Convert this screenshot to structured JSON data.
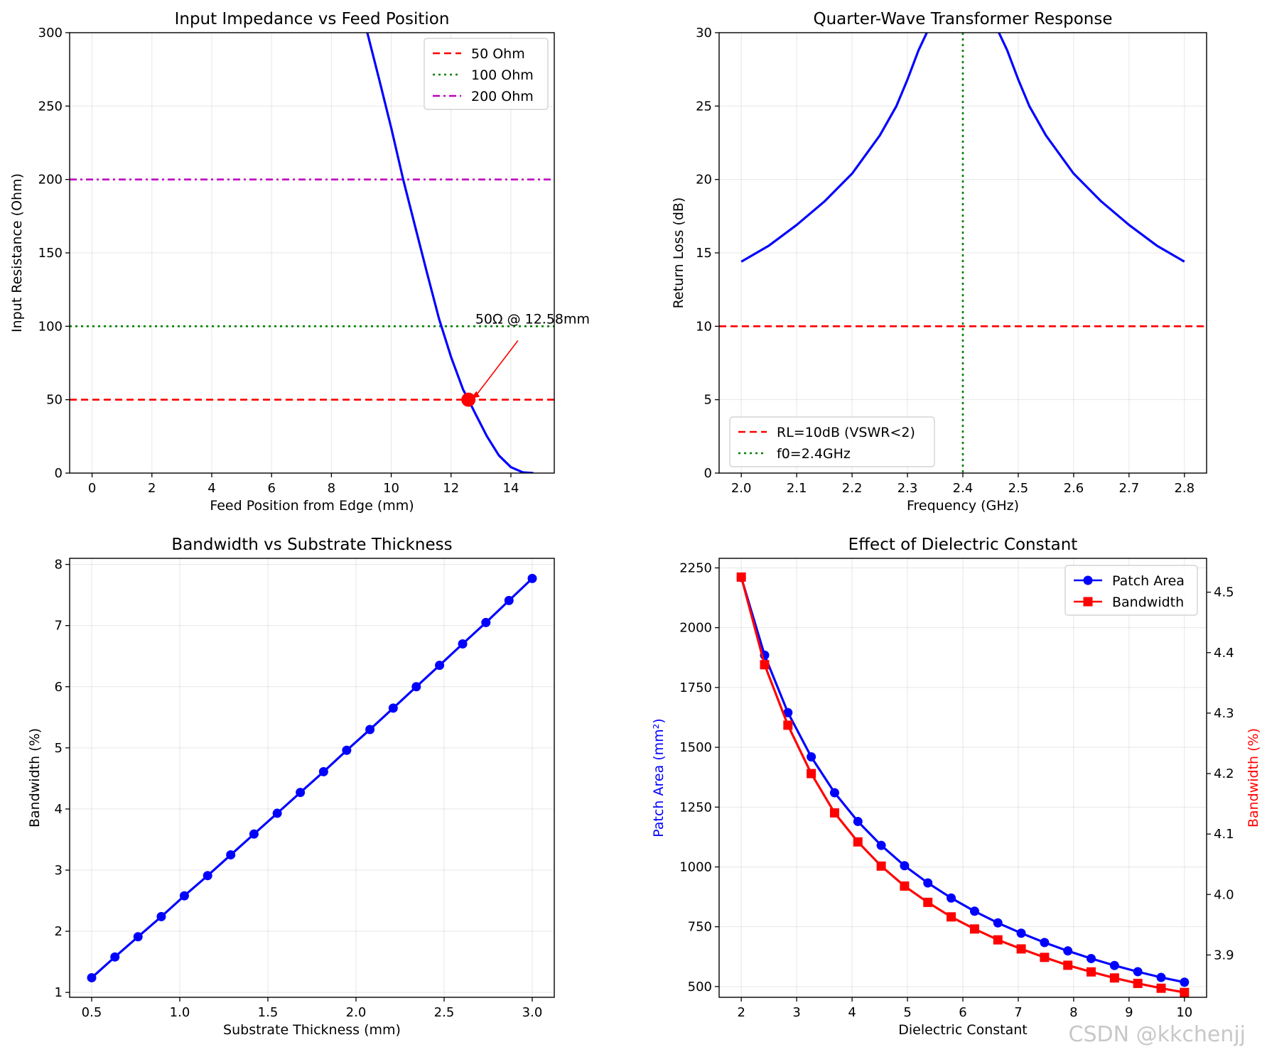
{
  "watermark": "CSDN @kkchenjj",
  "chart_data": [
    {
      "type": "line",
      "title": "Input Impedance vs Feed Position",
      "xlabel": "Feed Position from Edge (mm)",
      "ylabel": "Input Resistance (Ohm)",
      "xlim": [
        -0.75,
        15.45
      ],
      "ylim": [
        0,
        300
      ],
      "xticks": [
        0,
        2,
        4,
        6,
        8,
        10,
        12,
        14
      ],
      "yticks": [
        0,
        50,
        100,
        150,
        200,
        250,
        300
      ],
      "grid": true,
      "legend_position": "upper-right",
      "series": [
        {
          "name": "Input Resistance",
          "color": "#0000ff",
          "style": "solid",
          "x": [
            9.2,
            9.6,
            10.0,
            10.4,
            10.8,
            11.2,
            11.6,
            12.0,
            12.4,
            12.58,
            12.8,
            13.2,
            13.6,
            14.0,
            14.4,
            14.75
          ],
          "y": [
            300,
            268,
            235,
            200,
            168,
            136,
            105,
            79,
            57,
            50,
            41,
            25,
            12,
            4,
            0.5,
            0
          ]
        }
      ],
      "hlines": [
        {
          "label": "50 Ohm",
          "y": 50,
          "color": "#ff0000",
          "style": "dashed"
        },
        {
          "label": "100 Ohm",
          "y": 100,
          "color": "#008000",
          "style": "dotted"
        },
        {
          "label": "200 Ohm",
          "y": 200,
          "color": "#bf00bf",
          "style": "dashdot"
        }
      ],
      "marker": {
        "x": 12.58,
        "y": 50,
        "color": "#ff0000"
      },
      "annotation": {
        "text": "50Ω @ 12.58mm",
        "x": 12.58,
        "y": 50,
        "text_x": 14.9,
        "text_y": 97
      }
    },
    {
      "type": "line",
      "title": "Quarter-Wave Transformer Response",
      "xlabel": "Frequency (GHz)",
      "ylabel": "Return Loss (dB)",
      "xlim": [
        1.96,
        2.84
      ],
      "ylim": [
        0,
        30
      ],
      "xticks": [
        2.0,
        2.1,
        2.2,
        2.3,
        2.4,
        2.5,
        2.6,
        2.7,
        2.8
      ],
      "xtick_labels": [
        "2.0",
        "2.1",
        "2.2",
        "2.3",
        "2.4",
        "2.5",
        "2.6",
        "2.7",
        "2.8"
      ],
      "yticks": [
        0,
        5,
        10,
        15,
        20,
        25,
        30
      ],
      "grid": true,
      "legend_position": "lower-left",
      "series": [
        {
          "name": "Return Loss",
          "color": "#0000ff",
          "style": "solid",
          "segments": [
            {
              "x": [
                2.0,
                2.05,
                2.1,
                2.15,
                2.2,
                2.25,
                2.28,
                2.3,
                2.32,
                2.335
              ],
              "y": [
                14.4,
                15.5,
                16.9,
                18.5,
                20.4,
                23.0,
                25.0,
                26.8,
                28.8,
                30
              ]
            },
            {
              "x": [
                2.465,
                2.48,
                2.5,
                2.52,
                2.55,
                2.6,
                2.65,
                2.7,
                2.75,
                2.8
              ],
              "y": [
                30,
                28.8,
                26.8,
                25.0,
                23.0,
                20.4,
                18.5,
                16.9,
                15.5,
                14.4
              ]
            }
          ]
        }
      ],
      "hlines": [
        {
          "label": "RL=10dB (VSWR<2)",
          "y": 10,
          "color": "#ff0000",
          "style": "dashed"
        }
      ],
      "vlines": [
        {
          "label": "f0=2.4GHz",
          "x": 2.4,
          "color": "#008000",
          "style": "dotted"
        }
      ]
    },
    {
      "type": "line",
      "title": "Bandwidth vs Substrate Thickness",
      "xlabel": "Substrate Thickness (mm)",
      "ylabel": "Bandwidth (%)",
      "xlim": [
        0.375,
        3.125
      ],
      "ylim": [
        0.92,
        8.1
      ],
      "xticks": [
        0.5,
        1.0,
        1.5,
        2.0,
        2.5,
        3.0
      ],
      "xtick_labels": [
        "0.5",
        "1.0",
        "1.5",
        "2.0",
        "2.5",
        "3.0"
      ],
      "yticks": [
        1,
        2,
        3,
        4,
        5,
        6,
        7,
        8
      ],
      "grid": true,
      "series": [
        {
          "name": "Bandwidth",
          "color": "#0000ff",
          "marker": "circle",
          "x": [
            0.5,
            0.632,
            0.763,
            0.895,
            1.026,
            1.158,
            1.289,
            1.421,
            1.553,
            1.684,
            1.816,
            1.947,
            2.079,
            2.211,
            2.342,
            2.474,
            2.605,
            2.737,
            2.868,
            3.0
          ],
          "y": [
            1.24,
            1.58,
            1.91,
            2.24,
            2.58,
            2.91,
            3.25,
            3.59,
            3.93,
            4.27,
            4.61,
            4.96,
            5.3,
            5.65,
            6.0,
            6.35,
            6.7,
            7.05,
            7.41,
            7.77
          ]
        }
      ]
    },
    {
      "type": "line",
      "title": "Effect of Dielectric Constant",
      "xlabel": "Dielectric Constant",
      "ylabel": "Patch Area (mm²)",
      "ylabel_color": "#0000ff",
      "ylabel_right": "Bandwidth (%)",
      "ylabel_right_color": "#ff0000",
      "xlim": [
        1.6,
        10.4
      ],
      "ylim": [
        455,
        2290
      ],
      "ylim_right": [
        3.83,
        4.556
      ],
      "xticks": [
        2,
        3,
        4,
        5,
        6,
        7,
        8,
        9,
        10
      ],
      "yticks": [
        500,
        750,
        1000,
        1250,
        1500,
        1750,
        2000,
        2250
      ],
      "yticks_right": [
        3.9,
        4.0,
        4.1,
        4.2,
        4.3,
        4.4,
        4.5
      ],
      "grid": true,
      "legend_position": "upper-right",
      "series": [
        {
          "name": "Patch Area",
          "axis": "left",
          "color": "#0000ff",
          "marker": "circle",
          "x": [
            2.0,
            2.421,
            2.842,
            3.263,
            3.684,
            4.105,
            4.526,
            4.947,
            5.368,
            5.789,
            6.211,
            6.632,
            7.053,
            7.474,
            7.895,
            8.316,
            8.737,
            9.158,
            9.579,
            10.0
          ],
          "y": [
            2210,
            1885,
            1645,
            1460,
            1310,
            1190,
            1090,
            1005,
            933,
            870,
            815,
            766,
            723,
            684,
            649,
            617,
            588,
            562,
            538,
            518
          ]
        },
        {
          "name": "Bandwidth",
          "axis": "right",
          "color": "#ff0000",
          "marker": "square",
          "x": [
            2.0,
            2.421,
            2.842,
            3.263,
            3.684,
            4.105,
            4.526,
            4.947,
            5.368,
            5.789,
            6.211,
            6.632,
            7.053,
            7.474,
            7.895,
            8.316,
            8.737,
            9.158,
            9.579,
            10.0
          ],
          "y": [
            4.525,
            4.38,
            4.28,
            4.2,
            4.135,
            4.087,
            4.047,
            4.014,
            3.987,
            3.963,
            3.943,
            3.925,
            3.91,
            3.896,
            3.883,
            3.872,
            3.862,
            3.853,
            3.845,
            3.838
          ]
        }
      ]
    }
  ]
}
